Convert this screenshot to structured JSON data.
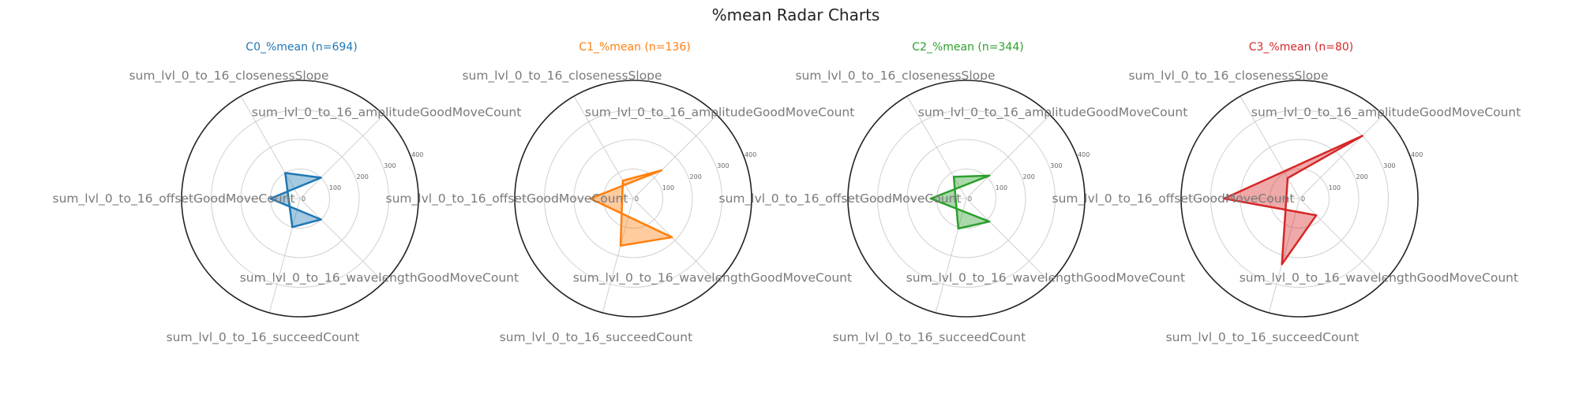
{
  "figure": {
    "title": "%mean Radar Charts"
  },
  "chart_data": [
    {
      "type": "radar",
      "title": "C0_%mean (n=694)",
      "color": "#1f77b4",
      "rlim": [
        0,
        400
      ],
      "rticks": [
        0,
        100,
        200,
        300,
        400
      ],
      "axes": [
        "sum_lvl_0_to_16_closenessSlope",
        "sum_lvl_0_to_16_amplitudeGoodMoveCount",
        "sum_lvl_0_to_16_offsetGoodMoveCount",
        "sum_lvl_0_to_16_wavelengthGoodMoveCount",
        "sum_lvl_0_to_16_succeedCount"
      ],
      "values": [
        100,
        100,
        100,
        100,
        100
      ],
      "grid": true
    },
    {
      "type": "radar",
      "title": "C1_%mean (n=136)",
      "color": "#ff7f0e",
      "rlim": [
        0,
        400
      ],
      "rticks": [
        0,
        100,
        200,
        300,
        400
      ],
      "axes": [
        "sum_lvl_0_to_16_closenessSlope",
        "sum_lvl_0_to_16_amplitudeGoodMoveCount",
        "sum_lvl_0_to_16_offsetGoodMoveCount",
        "sum_lvl_0_to_16_wavelengthGoodMoveCount",
        "sum_lvl_0_to_16_succeedCount"
      ],
      "values": [
        70,
        135,
        145,
        185,
        165
      ],
      "grid": true
    },
    {
      "type": "radar",
      "title": "C2_%mean (n=344)",
      "color": "#2ca02c",
      "rlim": [
        0,
        400
      ],
      "rticks": [
        0,
        100,
        200,
        300,
        400
      ],
      "axes": [
        "sum_lvl_0_to_16_closenessSlope",
        "sum_lvl_0_to_16_amplitudeGoodMoveCount",
        "sum_lvl_0_to_16_offsetGoodMoveCount",
        "sum_lvl_0_to_16_wavelengthGoodMoveCount",
        "sum_lvl_0_to_16_succeedCount"
      ],
      "values": [
        85,
        110,
        120,
        110,
        105
      ],
      "grid": true
    },
    {
      "type": "radar",
      "title": "C3_%mean (n=80)",
      "color": "#d62728",
      "rlim": [
        0,
        400
      ],
      "rticks": [
        0,
        100,
        200,
        300,
        400
      ],
      "axes": [
        "sum_lvl_0_to_16_closenessSlope",
        "sum_lvl_0_to_16_amplitudeGoodMoveCount",
        "sum_lvl_0_to_16_offsetGoodMoveCount",
        "sum_lvl_0_to_16_wavelengthGoodMoveCount",
        "sum_lvl_0_to_16_succeedCount"
      ],
      "values": [
        80,
        300,
        255,
        80,
        230
      ],
      "grid": true
    }
  ]
}
